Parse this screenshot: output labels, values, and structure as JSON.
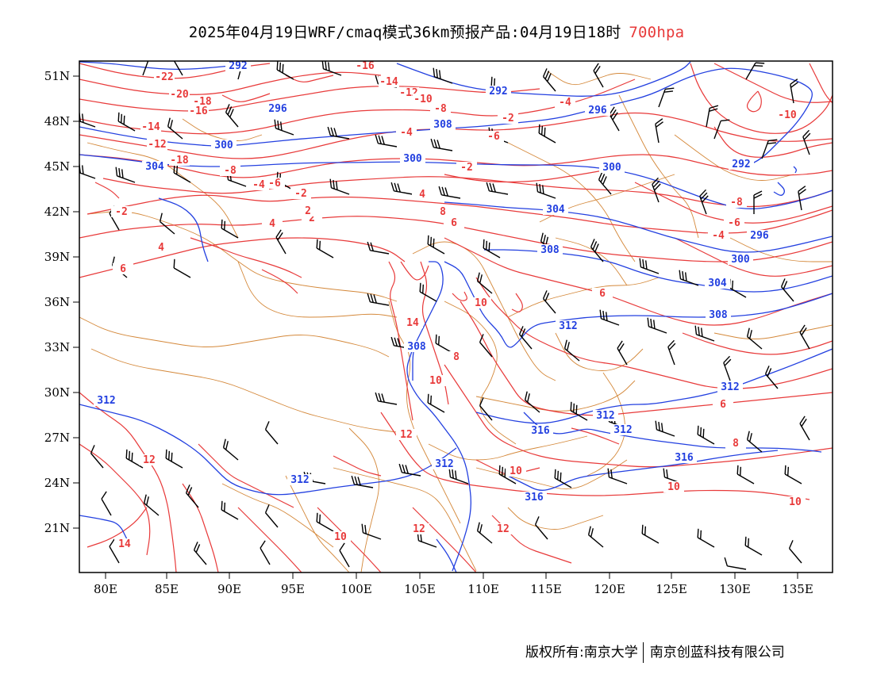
{
  "title": {
    "main": "2025年04月19日WRF/cmaq模式36km预报产品:04月19日18时",
    "level": "700hpa"
  },
  "axes": {
    "lon_labels": [
      "80E",
      "85E",
      "90E",
      "95E",
      "100E",
      "105E",
      "110E",
      "115E",
      "120E",
      "125E",
      "130E",
      "135E"
    ],
    "lat_labels": [
      "51N",
      "48N",
      "45N",
      "42N",
      "39N",
      "36N",
      "33N",
      "30N",
      "27N",
      "24N",
      "21N"
    ]
  },
  "map_extent": {
    "lon": [
      78,
      138
    ],
    "lat": [
      18.2,
      52
    ]
  },
  "colors": {
    "temperature": "#e83a3a",
    "height": "#2340e0",
    "boundary": "#d4883a",
    "barb": "#000000"
  },
  "contours": {
    "height_labels": [
      "292",
      "296",
      "300",
      "304",
      "308",
      "312",
      "316"
    ],
    "temperature_labels": [
      "-22",
      "-20",
      "-18",
      "-16",
      "-14",
      "-12",
      "-10",
      "-8",
      "-6",
      "-4",
      "-2",
      "2",
      "4",
      "6",
      "8",
      "10",
      "12",
      "14"
    ]
  },
  "footer": {
    "left": "版权所有:南京大学",
    "right": "南京创蓝科技有限公司"
  }
}
